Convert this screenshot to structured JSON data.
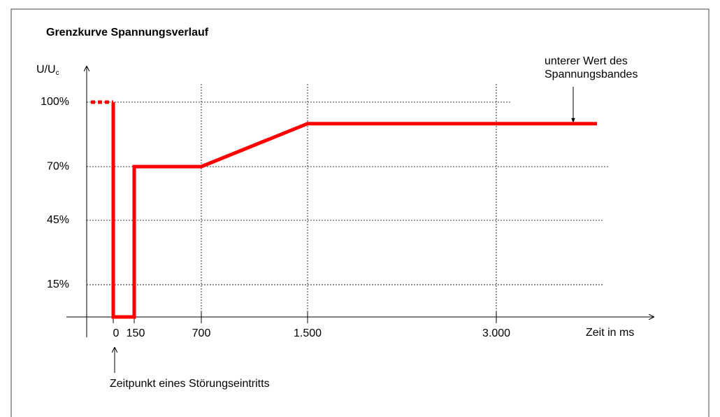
{
  "chart_data": {
    "type": "line",
    "title": "Grenzkurve Spannungsverlauf",
    "ylabel": {
      "base": "U/U",
      "sub": "c"
    },
    "xlabel": "Zeit in ms",
    "xticks": [
      0,
      150,
      700,
      {
        "value": 1500,
        "label": "1.500"
      },
      {
        "value": 3000,
        "label": "3.000"
      }
    ],
    "yticks": [
      {
        "value": 15,
        "label": "15%"
      },
      {
        "value": 45,
        "label": "45%"
      },
      {
        "value": 70,
        "label": "70%"
      },
      {
        "value": 100,
        "label": "100%"
      }
    ],
    "ylim": [
      0,
      100
    ],
    "grid": true,
    "series": [
      {
        "color": "#ff0000",
        "style": "dotted",
        "x": [
          -160,
          0
        ],
        "values": [
          100,
          100
        ]
      },
      {
        "color": "#ff0000",
        "style": "solid",
        "x": [
          0,
          0,
          150,
          150,
          700,
          1500,
          3800
        ],
        "values": [
          100,
          0,
          0,
          70,
          70,
          90,
          90
        ]
      }
    ],
    "annotations": [
      {
        "lines": [
          "unterer Wert des",
          "Spannungsbandes"
        ]
      },
      {
        "lines": [
          "Zeitpunkt eines Störungseintritts"
        ]
      }
    ]
  }
}
